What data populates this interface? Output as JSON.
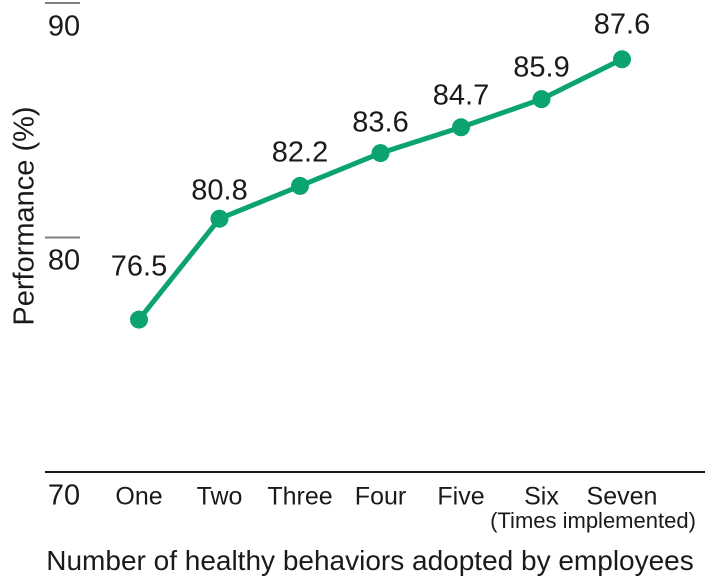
{
  "chart_data": {
    "type": "line",
    "title": "Number of healthy behaviors adopted by employees",
    "ylabel": "Performance (%)",
    "xlabel_note": "(Times implemented)",
    "categories": [
      "One",
      "Two",
      "Three",
      "Four",
      "Five",
      "Six",
      "Seven"
    ],
    "series": [
      {
        "name": "Performance",
        "values": [
          76.5,
          80.8,
          82.2,
          83.6,
          84.7,
          85.9,
          87.6
        ],
        "data_labels": [
          "76.5",
          "80.8",
          "82.2",
          "83.6",
          "84.7",
          "85.9",
          "87.6"
        ]
      }
    ],
    "yticks": [
      70,
      80,
      90
    ],
    "ylim": [
      70,
      90
    ],
    "grid": "off",
    "legend": "none",
    "line_color": "#0ba36e",
    "marker_color": "#0ba36e",
    "axis_line_color": "#1a1a1a",
    "tick_mark_color": "#7f7f7f",
    "text_color": "#1a1a1a"
  }
}
